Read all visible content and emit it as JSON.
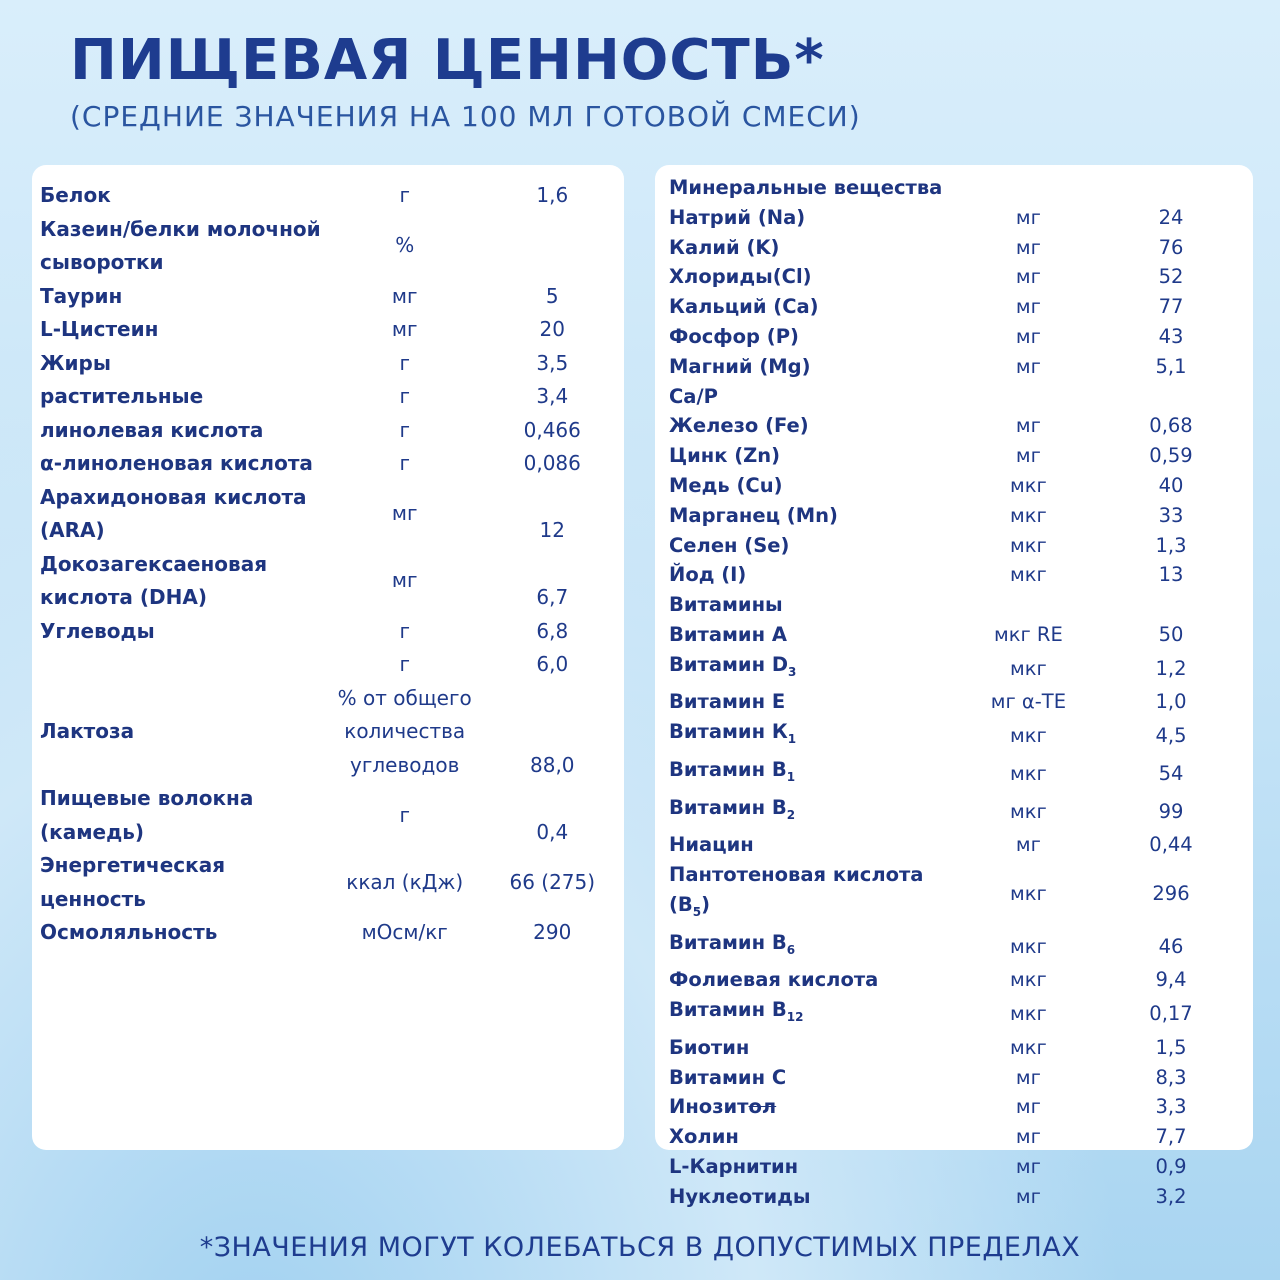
{
  "header": {
    "title": "ПИЩЕВАЯ ЦЕННОСТЬ*",
    "subtitle": "(СРЕДНИЕ ЗНАЧЕНИЯ НА 100 МЛ ГОТОВОЙ СМЕСИ)"
  },
  "left_rows": [
    {
      "name": "Белок",
      "unit": "г",
      "value": "1,6"
    },
    {
      "name": "Казеин/белки молочной сыворотки",
      "unit": "%",
      "value": ""
    },
    {
      "name": "Таурин",
      "unit": "мг",
      "value": "5"
    },
    {
      "name": "L-Цистеин",
      "unit": "мг",
      "value": "20"
    },
    {
      "name": "Жиры",
      "unit": "г",
      "value": "3,5"
    },
    {
      "name": "растительные",
      "unit": "г",
      "value": "3,4"
    },
    {
      "name": "линолевая кислота",
      "unit": "г",
      "value": "0,466"
    },
    {
      "name": "α-линоленовая кислота",
      "unit": "г",
      "value": "0,086"
    },
    {
      "name": "Арахидоновая кислота (ARA)",
      "unit": "мг",
      "value": "12"
    },
    {
      "name": "Докозагексаеновая кислота (DHA)",
      "unit": "мг",
      "value": "6,7"
    },
    {
      "name": "Углеводы",
      "unit": "г",
      "value": "6,8"
    },
    {
      "name": "",
      "unit": "г",
      "value": "6,0"
    },
    {
      "name": "Лактоза",
      "unit": "% от общего количества углеводов",
      "value": "88,0"
    },
    {
      "name": "Пищевые волокна (камедь)",
      "unit": "г",
      "value": "0,4"
    },
    {
      "name": "Энергетическая ценность",
      "unit": "ккал (кДж)",
      "value": "66 (275)"
    },
    {
      "name": "Осмоляльность",
      "unit": "мОсм/кг",
      "value": "290"
    }
  ],
  "right_rows": [
    {
      "name": "Минеральные вещества",
      "unit": "",
      "value": ""
    },
    {
      "name": "Натрий (Na)",
      "unit": "мг",
      "value": "24"
    },
    {
      "name": "Калий (K)",
      "unit": "мг",
      "value": "76"
    },
    {
      "name": "Хлориды(Cl)",
      "unit": "мг",
      "value": "52"
    },
    {
      "name": "Кальций (Ca)",
      "unit": "мг",
      "value": "77"
    },
    {
      "name": "Фосфор (P)",
      "unit": "мг",
      "value": "43"
    },
    {
      "name": "Магний (Mg)",
      "unit": "мг",
      "value": "5,1"
    },
    {
      "name": "Ca/P",
      "unit": "",
      "value": ""
    },
    {
      "name": "Железо (Fe)",
      "unit": "мг",
      "value": "0,68"
    },
    {
      "name": "Цинк (Zn)",
      "unit": "мг",
      "value": "0,59"
    },
    {
      "name": "Медь (Cu)",
      "unit": "мкг",
      "value": "40"
    },
    {
      "name": "Марганец (Mn)",
      "unit": "мкг",
      "value": "33"
    },
    {
      "name": "Селен (Se)",
      "unit": "мкг",
      "value": "1,3"
    },
    {
      "name": "Йод (I)",
      "unit": "мкг",
      "value": "13"
    },
    {
      "name": "Витамины",
      "unit": "",
      "value": ""
    },
    {
      "name": "Витамин А",
      "unit": "мкг RE",
      "value": "50"
    },
    {
      "name": "Витамин D",
      "sub": "3",
      "unit": "мкг",
      "value": "1,2"
    },
    {
      "name": "Витамин Е",
      "unit": "мг α-TE",
      "value": "1,0"
    },
    {
      "name": "Витамин К",
      "sub": "1",
      "unit": "мкг",
      "value": "4,5"
    },
    {
      "name": "Витамин B",
      "sub": "1",
      "unit": "мкг",
      "value": "54"
    },
    {
      "name": "Витамин B",
      "sub": "2",
      "unit": "мкг",
      "value": "99"
    },
    {
      "name": "Ниацин",
      "unit": "мг",
      "value": "0,44"
    },
    {
      "name": "Пантотеновая кислота (B",
      "sub": "5",
      "suffix": ")",
      "unit": "мкг",
      "value": "296"
    },
    {
      "name": "Витамин B",
      "sub": "6",
      "unit": "мкг",
      "value": "46"
    },
    {
      "name": "Фолиевая кислота",
      "unit": "мкг",
      "value": "9,4"
    },
    {
      "name": "Витамин B",
      "sub": "12",
      "unit": "мкг",
      "value": "0,17"
    },
    {
      "name": "Биотин",
      "unit": "мкг",
      "value": "1,5"
    },
    {
      "name": "Витамин С",
      "unit": "мг",
      "value": "8,3"
    },
    {
      "name": "Инозит",
      "struck": "ол",
      "unit": "мг",
      "value": "3,3"
    },
    {
      "name": "Холин",
      "unit": "мг",
      "value": "7,7"
    },
    {
      "name": "L-Карнитин",
      "unit": "мг",
      "value": "0,9"
    },
    {
      "name": "Нуклеотиды",
      "unit": "мг",
      "value": "3,2"
    }
  ],
  "footer": "*ЗНАЧЕНИЯ МОГУТ КОЛЕБАТЬСЯ В ДОПУСТИМЫХ ПРЕДЕЛАХ",
  "colors": {
    "title": "#1e3c8f",
    "text": "#1f3a8a",
    "panel": "#ffffff",
    "background": "#c6e4f7"
  }
}
